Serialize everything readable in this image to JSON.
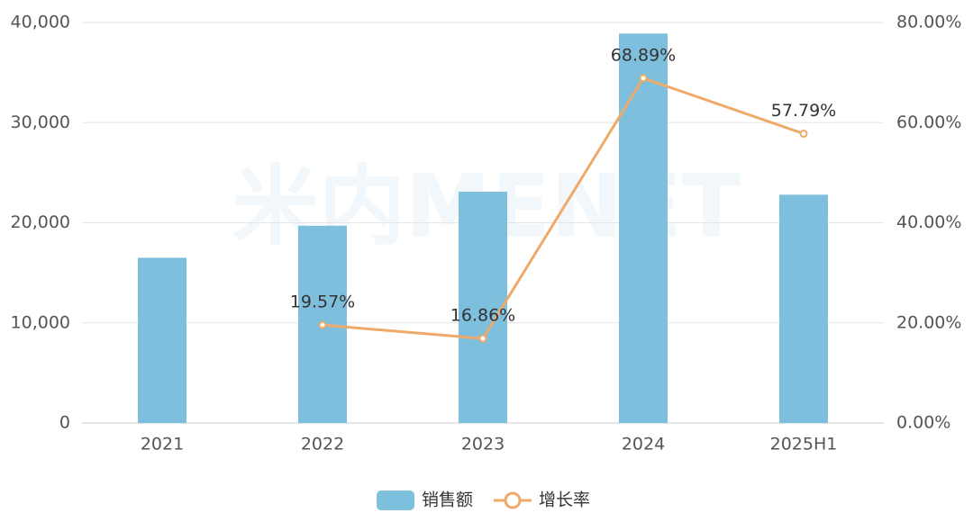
{
  "chart_data": {
    "type": "bar-line",
    "watermark": "米内MENET",
    "categories": [
      "2021",
      "2022",
      "2023",
      "2024",
      "2025H1"
    ],
    "series": [
      {
        "name": "销售额",
        "type": "bar",
        "color": "#7dbfdc",
        "values": [
          16500,
          19700,
          23100,
          38900,
          22800
        ]
      },
      {
        "name": "增长率",
        "type": "line",
        "axis": "y2",
        "color": "#efaa6a",
        "values": [
          null,
          19.57,
          16.86,
          68.89,
          57.79
        ],
        "value_labels": [
          null,
          "19.57%",
          "16.86%",
          "68.89%",
          "57.79%"
        ]
      }
    ],
    "ylim": [
      0,
      40000
    ],
    "yticks": [
      0,
      {
        "value": 10000,
        "label": "10,000"
      },
      {
        "value": 20000,
        "label": "20,000"
      },
      {
        "value": 30000,
        "label": "30,000"
      },
      {
        "value": 40000,
        "label": "40,000"
      }
    ],
    "y2lim": [
      0,
      80
    ],
    "y2ticks": [
      {
        "value": 0,
        "label": "0.00%"
      },
      {
        "value": 20,
        "label": "20.00%"
      },
      {
        "value": 40,
        "label": "40.00%"
      },
      {
        "value": 60,
        "label": "60.00%"
      },
      {
        "value": 80,
        "label": "80.00%"
      }
    ],
    "grid": true,
    "legend": "bottom"
  }
}
